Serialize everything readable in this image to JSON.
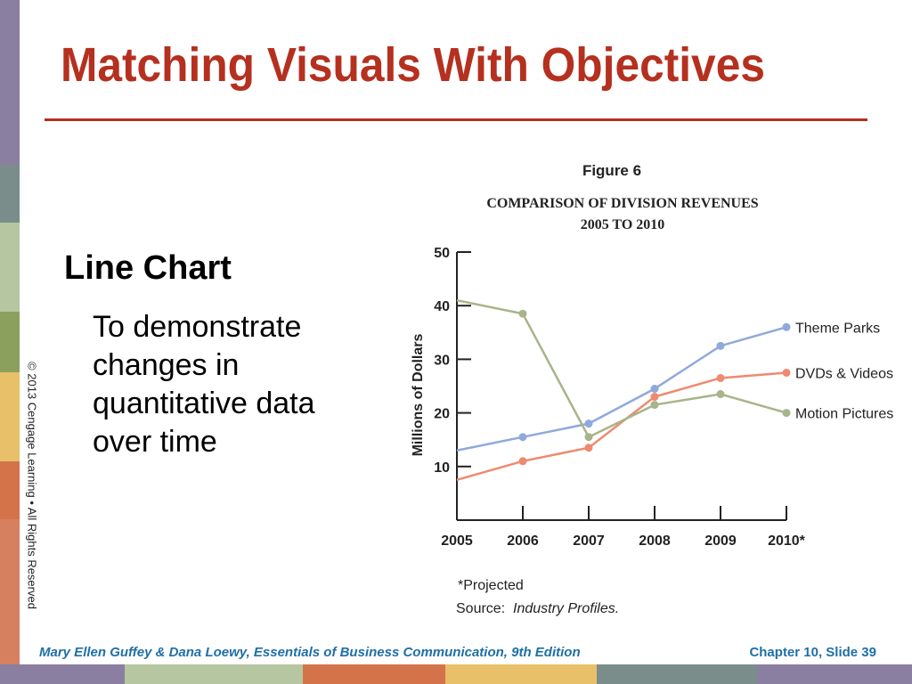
{
  "slide": {
    "title": "Matching Visuals With Objectives",
    "heading": "Line Chart",
    "body_lines": [
      "To demonstrate",
      "changes in",
      "quantitative data",
      "over time"
    ],
    "copyright": "© 2013 Cengage Learning  •  All Rights Reserved",
    "footer_left": "Mary Ellen Guffey & Dana Loewy, Essentials of Business Communication, 9th Edition",
    "footer_right": "Chapter 10, Slide 39"
  },
  "colors": {
    "title": "#b5301f",
    "footer_text": "#1f6fa6",
    "strip": [
      "#8a7fa0",
      "#7a8d8a",
      "#b6c6a0",
      "#8aa05c",
      "#e8c06a",
      "#d4734a",
      "#d68060"
    ]
  },
  "chart_data": {
    "type": "line",
    "figure_label": "Figure 6",
    "title": "COMPARISON OF DIVISION REVENUES",
    "subtitle": "2005 TO 2010",
    "ylabel": "Millions of Dollars",
    "xlabel": "",
    "categories": [
      "2005",
      "2006",
      "2007",
      "2008",
      "2009",
      "2010*"
    ],
    "ylim": [
      0,
      50
    ],
    "yticks": [
      10,
      20,
      30,
      40,
      50
    ],
    "grid": false,
    "legend": "right-end labels",
    "series": [
      {
        "name": "Theme Parks",
        "values": [
          13,
          15.5,
          18,
          24.5,
          32.5,
          36
        ],
        "color": "#8fa9dc"
      },
      {
        "name": "DVDs & Videos",
        "values": [
          7.5,
          11,
          13.5,
          23,
          26.5,
          27.5
        ],
        "color": "#ee8a70"
      },
      {
        "name": "Motion Pictures",
        "values": [
          41,
          38.5,
          15.5,
          21.5,
          23.5,
          20
        ],
        "color": "#a8b48a"
      }
    ],
    "footnote": "*Projected",
    "source_label": "Source:",
    "source_text": "Industry Profiles."
  }
}
